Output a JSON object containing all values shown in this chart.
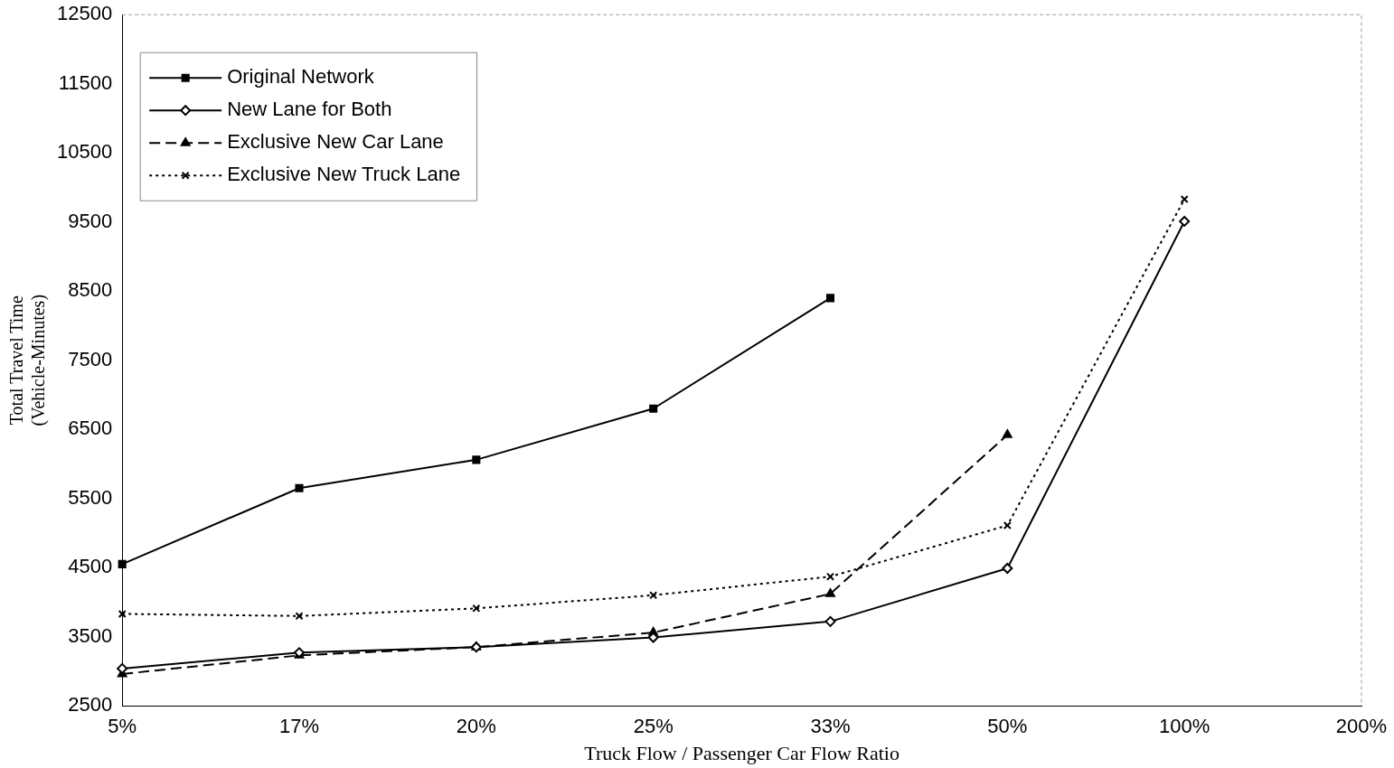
{
  "chart_data": {
    "type": "line",
    "xlabel": "Truck Flow / Passenger Car Flow Ratio",
    "ylabel": "Total Travel Time\n(Vehicle-Minutes)",
    "categories": [
      "5%",
      "17%",
      "20%",
      "25%",
      "33%",
      "50%",
      "100%",
      "200%"
    ],
    "series": [
      {
        "name": "Original Network",
        "color": "#000000",
        "marker": "square",
        "line_style": "solid",
        "values": [
          4550,
          5650,
          6060,
          6800,
          8400,
          null,
          null,
          null
        ]
      },
      {
        "name": "New Lane for Both",
        "color": "#000000",
        "marker": "diamond",
        "line_style": "solid",
        "values": [
          3040,
          3270,
          3350,
          3490,
          3720,
          4490,
          9510,
          null
        ]
      },
      {
        "name": "Exclusive New Car Lane",
        "color": "#000000",
        "marker": "triangle",
        "line_style": "dashed",
        "values": [
          2960,
          3230,
          3350,
          3560,
          4120,
          6420,
          null,
          null
        ]
      },
      {
        "name": "Exclusive New Truck Lane",
        "color": "#000000",
        "marker": "cross",
        "line_style": "dotted",
        "values": [
          3830,
          3800,
          3910,
          4100,
          4370,
          5110,
          9830,
          null
        ]
      }
    ],
    "ylim": [
      2500,
      12500
    ],
    "yticks": [
      2500,
      3500,
      4500,
      5500,
      6500,
      7500,
      8500,
      9500,
      10500,
      11500,
      12500
    ],
    "grid": false,
    "legend": "top left"
  }
}
